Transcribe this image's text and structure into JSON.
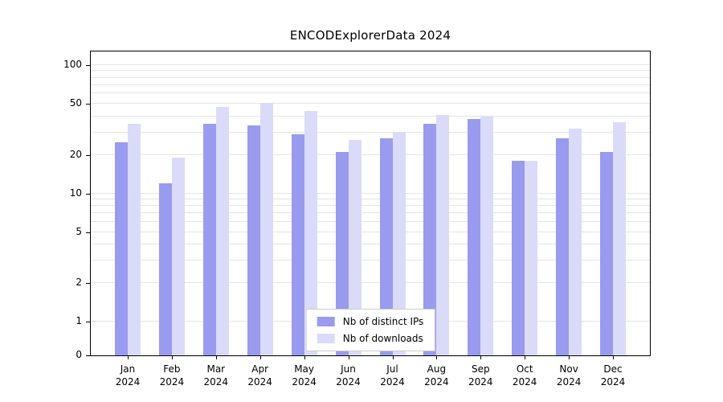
{
  "chart_data": {
    "type": "bar",
    "title": "ENCODExplorerData 2024",
    "x_year": "2024",
    "categories": [
      "Jan",
      "Feb",
      "Mar",
      "Apr",
      "May",
      "Jun",
      "Jul",
      "Aug",
      "Sep",
      "Oct",
      "Nov",
      "Dec"
    ],
    "series": [
      {
        "name": "Nb of distinct IPs",
        "color": "#999bee",
        "values": [
          25,
          12,
          35,
          34,
          29,
          21,
          27,
          35,
          38,
          18,
          27,
          21
        ]
      },
      {
        "name": "Nb of downloads",
        "color": "#d9dbf8",
        "values": [
          35,
          19,
          47,
          51,
          44,
          26,
          30,
          41,
          40,
          18,
          32,
          36
        ]
      }
    ],
    "yscale": "symlog",
    "ylim": [
      0,
      100
    ],
    "yticks": [
      0,
      1,
      2,
      5,
      10,
      20,
      50,
      100
    ],
    "grid": true,
    "legend_position": "bottom-center-inside"
  }
}
